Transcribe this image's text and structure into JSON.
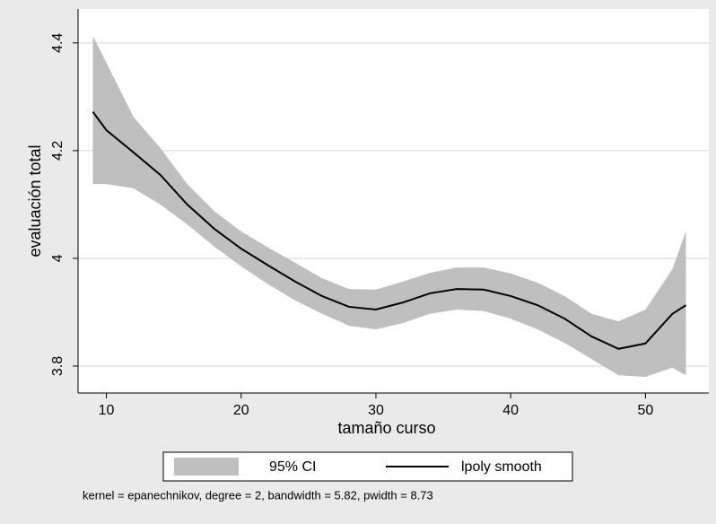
{
  "chart_data": {
    "type": "lpoly",
    "xlabel": "tamaño curso",
    "ylabel": "evaluación total",
    "note": "kernel = epanechnikov, degree = 2, bandwidth = 5.82, pwidth = 8.73",
    "x": [
      9,
      10,
      12,
      14,
      16,
      18,
      20,
      22,
      24,
      26,
      28,
      30,
      32,
      34,
      36,
      38,
      40,
      42,
      44,
      46,
      48,
      50,
      52,
      53
    ],
    "series": [
      {
        "name": "95% CI",
        "color": "#bfbfbf",
        "upper": [
          4.413,
          4.363,
          4.263,
          4.205,
          4.138,
          4.088,
          4.05,
          4.02,
          3.992,
          3.963,
          3.943,
          3.942,
          3.957,
          3.973,
          3.983,
          3.983,
          3.972,
          3.955,
          3.93,
          3.897,
          3.883,
          3.905,
          3.98,
          4.05
        ],
        "lower": [
          4.138,
          4.138,
          4.13,
          4.1,
          4.063,
          4.022,
          3.985,
          3.952,
          3.922,
          3.897,
          3.875,
          3.868,
          3.88,
          3.897,
          3.905,
          3.902,
          3.888,
          3.868,
          3.843,
          3.813,
          3.783,
          3.78,
          3.797,
          3.783
        ]
      },
      {
        "name": "lpoly smooth",
        "color": "#000000",
        "values": [
          4.272,
          4.238,
          4.197,
          4.155,
          4.1,
          4.055,
          4.018,
          3.987,
          3.957,
          3.93,
          3.91,
          3.905,
          3.918,
          3.935,
          3.943,
          3.942,
          3.93,
          3.913,
          3.888,
          3.855,
          3.832,
          3.842,
          3.897,
          3.913
        ]
      }
    ],
    "xlim": [
      7.9,
      54.7
    ],
    "xticks": [
      10,
      20,
      30,
      40,
      50
    ],
    "ylim": [
      3.75,
      4.463
    ],
    "yticks": [
      3.8,
      4,
      4.2,
      4.4
    ],
    "grid": true
  }
}
